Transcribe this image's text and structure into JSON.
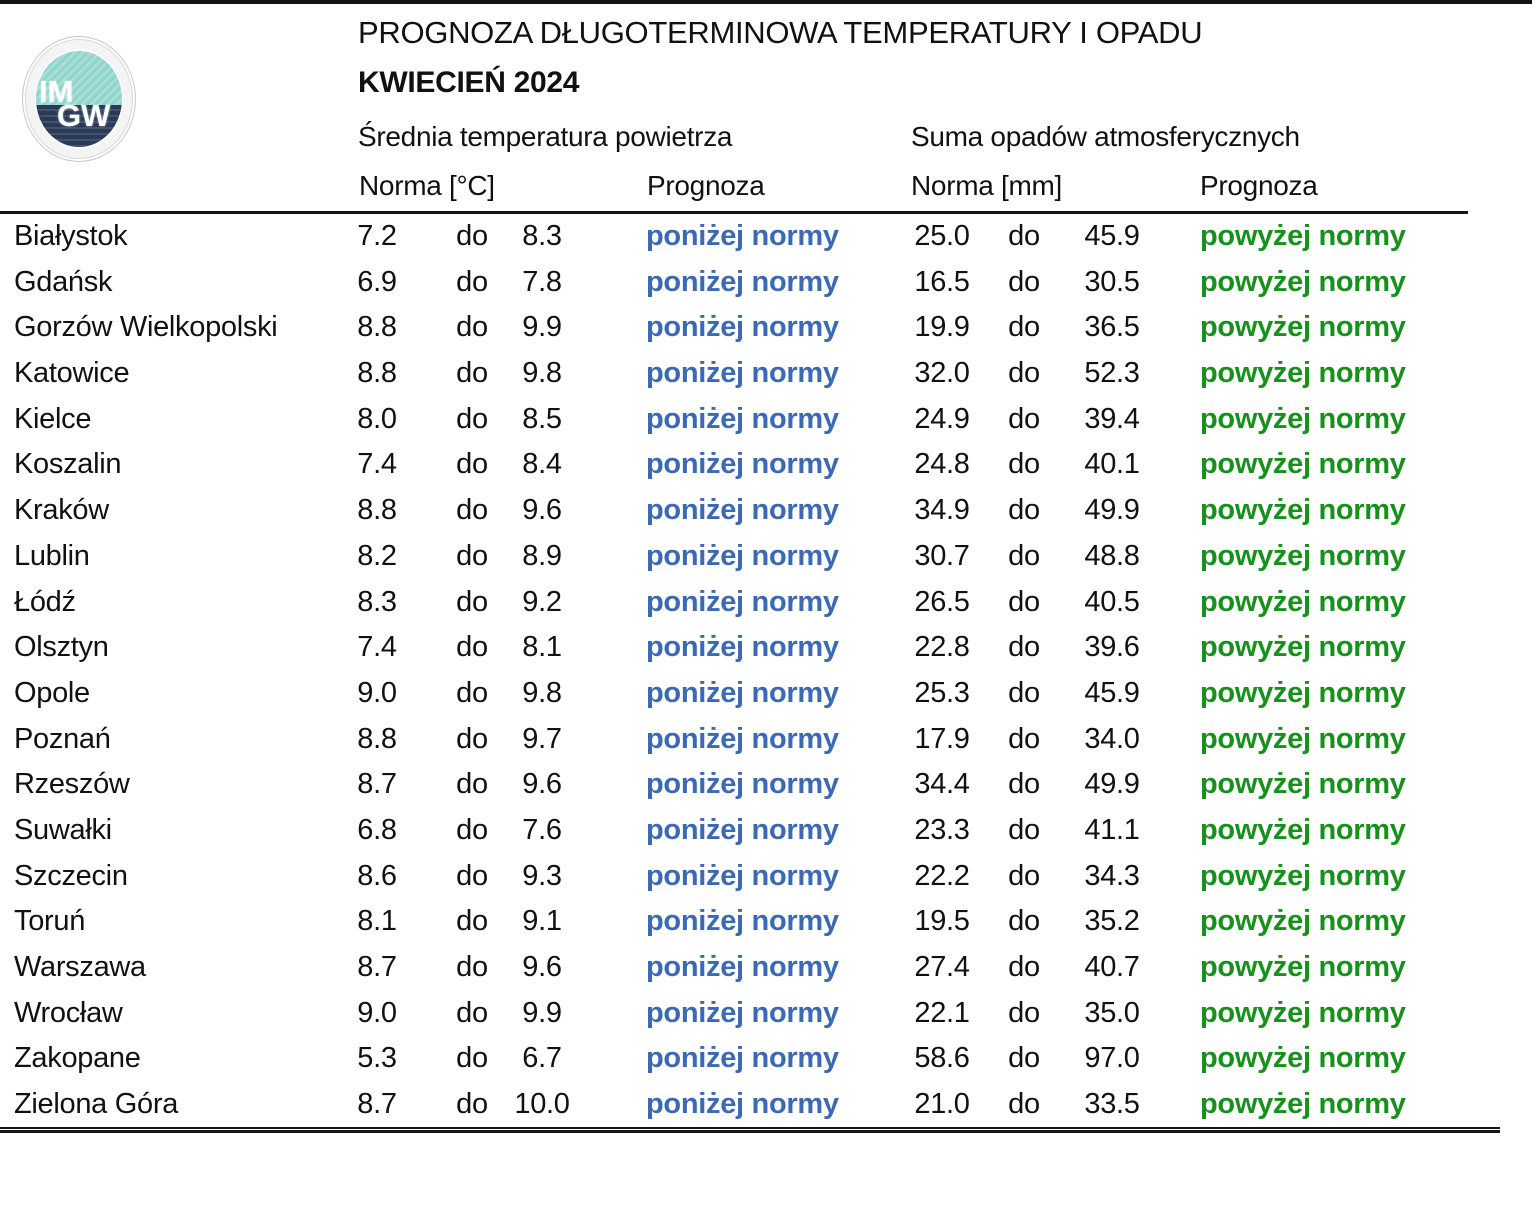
{
  "header": {
    "title_line1": "PROGNOZA DŁUGOTERMINOWA TEMPERATURY I OPADU",
    "title_line2": "KWIECIEŃ 2024"
  },
  "logo": {
    "line1": "IM",
    "line2": "GW"
  },
  "sections": {
    "temperature": {
      "label": "Średnia temperatura powietrza",
      "norma": "Norma [°C]",
      "prognoza": "Prognoza"
    },
    "precipitation": {
      "label": "Suma opadów atmosferycznych",
      "norma": "Norma [mm]",
      "prognoza": "Prognoza"
    }
  },
  "range_separator": "do",
  "colors": {
    "below_norm_blue": "#3b69b3",
    "above_norm_green": "#17911c",
    "logo_teal": "#8fd4cb",
    "logo_navy": "#2a3a55"
  },
  "rows": [
    {
      "city": "Białystok",
      "temp_low": "7.2",
      "temp_high": "8.3",
      "temp_prognoza": "poniżej normy",
      "precip_low": "25.0",
      "precip_high": "45.9",
      "precip_prognoza": "powyżej normy"
    },
    {
      "city": "Gdańsk",
      "temp_low": "6.9",
      "temp_high": "7.8",
      "temp_prognoza": "poniżej normy",
      "precip_low": "16.5",
      "precip_high": "30.5",
      "precip_prognoza": "powyżej normy"
    },
    {
      "city": "Gorzów Wielkopolski",
      "temp_low": "8.8",
      "temp_high": "9.9",
      "temp_prognoza": "poniżej normy",
      "precip_low": "19.9",
      "precip_high": "36.5",
      "precip_prognoza": "powyżej normy"
    },
    {
      "city": "Katowice",
      "temp_low": "8.8",
      "temp_high": "9.8",
      "temp_prognoza": "poniżej normy",
      "precip_low": "32.0",
      "precip_high": "52.3",
      "precip_prognoza": "powyżej normy"
    },
    {
      "city": "Kielce",
      "temp_low": "8.0",
      "temp_high": "8.5",
      "temp_prognoza": "poniżej normy",
      "precip_low": "24.9",
      "precip_high": "39.4",
      "precip_prognoza": "powyżej normy"
    },
    {
      "city": "Koszalin",
      "temp_low": "7.4",
      "temp_high": "8.4",
      "temp_prognoza": "poniżej normy",
      "precip_low": "24.8",
      "precip_high": "40.1",
      "precip_prognoza": "powyżej normy"
    },
    {
      "city": "Kraków",
      "temp_low": "8.8",
      "temp_high": "9.6",
      "temp_prognoza": "poniżej normy",
      "precip_low": "34.9",
      "precip_high": "49.9",
      "precip_prognoza": "powyżej normy"
    },
    {
      "city": "Lublin",
      "temp_low": "8.2",
      "temp_high": "8.9",
      "temp_prognoza": "poniżej normy",
      "precip_low": "30.7",
      "precip_high": "48.8",
      "precip_prognoza": "powyżej normy"
    },
    {
      "city": "Łódź",
      "temp_low": "8.3",
      "temp_high": "9.2",
      "temp_prognoza": "poniżej normy",
      "precip_low": "26.5",
      "precip_high": "40.5",
      "precip_prognoza": "powyżej normy"
    },
    {
      "city": "Olsztyn",
      "temp_low": "7.4",
      "temp_high": "8.1",
      "temp_prognoza": "poniżej normy",
      "precip_low": "22.8",
      "precip_high": "39.6",
      "precip_prognoza": "powyżej normy"
    },
    {
      "city": "Opole",
      "temp_low": "9.0",
      "temp_high": "9.8",
      "temp_prognoza": "poniżej normy",
      "precip_low": "25.3",
      "precip_high": "45.9",
      "precip_prognoza": "powyżej normy"
    },
    {
      "city": "Poznań",
      "temp_low": "8.8",
      "temp_high": "9.7",
      "temp_prognoza": "poniżej normy",
      "precip_low": "17.9",
      "precip_high": "34.0",
      "precip_prognoza": "powyżej normy"
    },
    {
      "city": "Rzeszów",
      "temp_low": "8.7",
      "temp_high": "9.6",
      "temp_prognoza": "poniżej normy",
      "precip_low": "34.4",
      "precip_high": "49.9",
      "precip_prognoza": "powyżej normy"
    },
    {
      "city": "Suwałki",
      "temp_low": "6.8",
      "temp_high": "7.6",
      "temp_prognoza": "poniżej normy",
      "precip_low": "23.3",
      "precip_high": "41.1",
      "precip_prognoza": "powyżej normy"
    },
    {
      "city": "Szczecin",
      "temp_low": "8.6",
      "temp_high": "9.3",
      "temp_prognoza": "poniżej normy",
      "precip_low": "22.2",
      "precip_high": "34.3",
      "precip_prognoza": "powyżej normy"
    },
    {
      "city": "Toruń",
      "temp_low": "8.1",
      "temp_high": "9.1",
      "temp_prognoza": "poniżej normy",
      "precip_low": "19.5",
      "precip_high": "35.2",
      "precip_prognoza": "powyżej normy"
    },
    {
      "city": "Warszawa",
      "temp_low": "8.7",
      "temp_high": "9.6",
      "temp_prognoza": "poniżej normy",
      "precip_low": "27.4",
      "precip_high": "40.7",
      "precip_prognoza": "powyżej normy"
    },
    {
      "city": "Wrocław",
      "temp_low": "9.0",
      "temp_high": "9.9",
      "temp_prognoza": "poniżej normy",
      "precip_low": "22.1",
      "precip_high": "35.0",
      "precip_prognoza": "powyżej normy"
    },
    {
      "city": "Zakopane",
      "temp_low": "5.3",
      "temp_high": "6.7",
      "temp_prognoza": "poniżej normy",
      "precip_low": "58.6",
      "precip_high": "97.0",
      "precip_prognoza": "powyżej normy"
    },
    {
      "city": "Zielona Góra",
      "temp_low": "8.7",
      "temp_high": "10.0",
      "temp_prognoza": "poniżej normy",
      "precip_low": "21.0",
      "precip_high": "33.5",
      "precip_prognoza": "powyżej normy"
    }
  ]
}
